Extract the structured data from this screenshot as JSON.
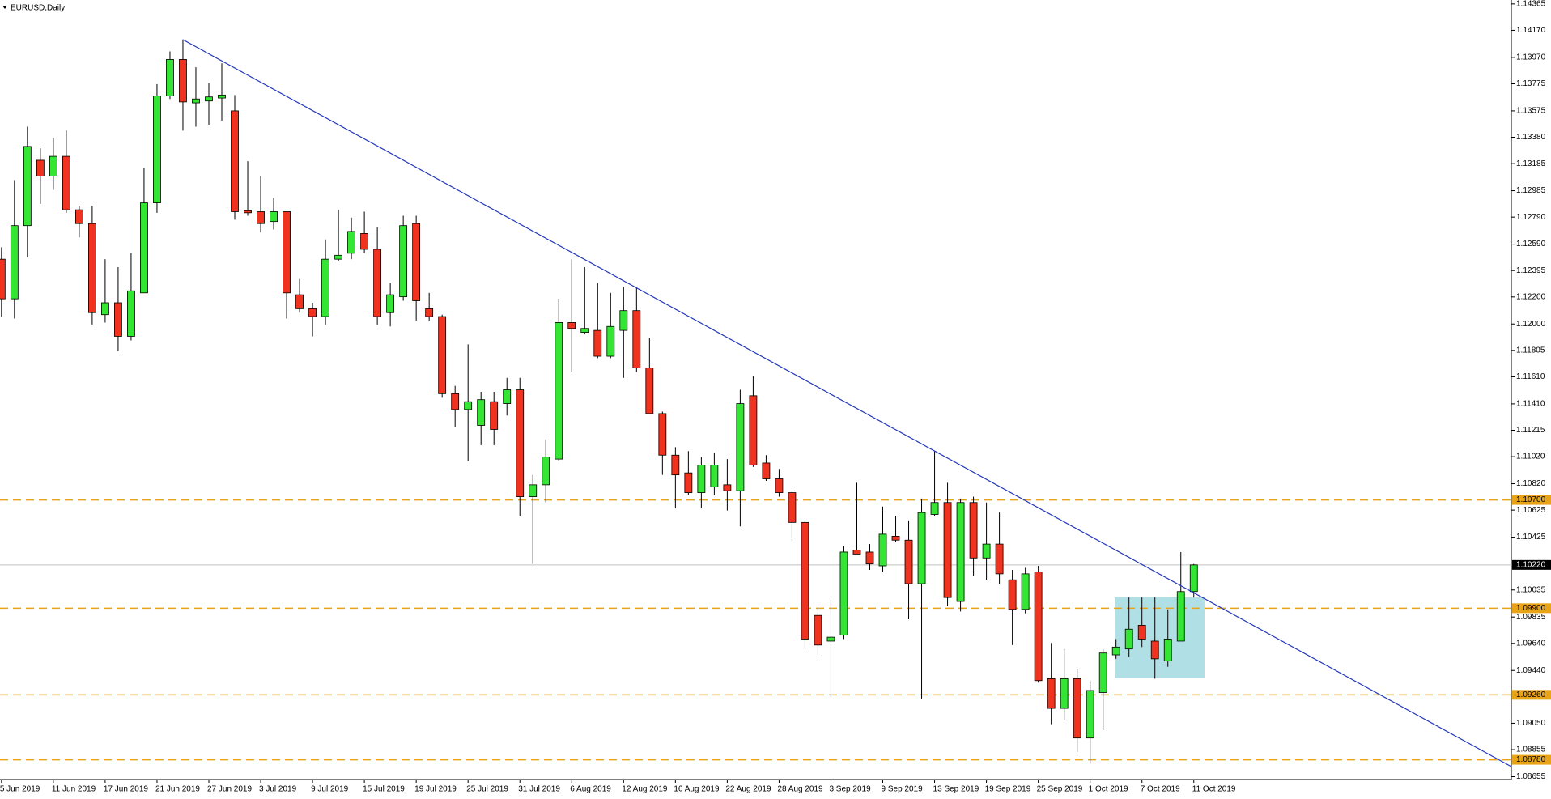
{
  "chart_data": {
    "type": "candlestick",
    "title": "EURUSD,Daily",
    "categories": [
      "5 Jun 2019",
      null,
      null,
      null,
      "11 Jun 2019",
      null,
      null,
      null,
      "17 Jun 2019",
      null,
      null,
      null,
      "21 Jun 2019",
      null,
      null,
      null,
      "27 Jun 2019",
      null,
      null,
      null,
      "3 Jul 2019",
      null,
      null,
      null,
      "9 Jul 2019",
      null,
      null,
      null,
      "15 Jul 2019",
      null,
      null,
      null,
      "19 Jul 2019",
      null,
      null,
      null,
      "25 Jul 2019",
      null,
      null,
      null,
      "31 Jul 2019",
      null,
      null,
      null,
      "6 Aug 2019",
      null,
      null,
      null,
      "12 Aug 2019",
      null,
      null,
      null,
      "16 Aug 2019",
      null,
      null,
      null,
      "22 Aug 2019",
      null,
      null,
      null,
      "28 Aug 2019",
      null,
      null,
      null,
      "3 Sep 2019",
      null,
      null,
      null,
      "9 Sep 2019",
      null,
      null,
      null,
      "13 Sep 2019",
      null,
      null,
      null,
      "19 Sep 2019",
      null,
      null,
      null,
      "25 Sep 2019",
      null,
      null,
      null,
      "1 Oct 2019",
      null,
      null,
      null,
      "7 Oct 2019",
      null,
      null,
      null,
      "11 Oct 2019"
    ],
    "open": [
      1.12479,
      1.12186,
      1.12727,
      1.1321,
      1.13093,
      1.13239,
      1.12844,
      1.12742,
      1.12069,
      1.12157,
      1.11909,
      1.1223,
      1.12895,
      1.13685,
      1.13955,
      1.13634,
      1.13648,
      1.1367,
      1.13575,
      1.12837,
      1.1283,
      1.12757,
      1.1283,
      1.12216,
      1.12113,
      1.12055,
      1.12479,
      1.12523,
      1.12669,
      1.12552,
      1.12084,
      1.12201,
      1.12742,
      1.12113,
      1.12055,
      1.11485,
      1.11368,
      1.11251,
      1.11426,
      1.11412,
      1.11514,
      1.10724,
      1.10812,
      1.11002,
      1.12011,
      1.11938,
      1.11953,
      1.11762,
      1.11953,
      1.12099,
      1.11675,
      1.11338,
      1.11031,
      1.109,
      1.10754,
      1.10797,
      1.10812,
      1.10768,
      1.1147,
      1.10973,
      1.10856,
      1.10754,
      1.10534,
      1.09847,
      1.09657,
      1.09701,
      1.1033,
      1.10315,
      1.10213,
      1.10432,
      1.10403,
      1.10081,
      1.10593,
      1.10681,
      1.0995,
      1.10681,
      1.10271,
      1.10374,
      1.1011,
      1.09891,
      1.10169,
      1.09379,
      1.0916,
      1.09379,
      1.08941,
      1.09277,
      1.09555,
      1.09599,
      1.09774,
      1.09657,
      1.09511,
      1.09657,
      1.10023
    ],
    "high": [
      1.12567,
      1.13064,
      1.13458,
      1.13298,
      1.13371,
      1.13429,
      1.12874,
      1.12874,
      1.12479,
      1.1242,
      1.12523,
      1.13151,
      1.13773,
      1.14014,
      1.14102,
      1.13897,
      1.1378,
      1.13926,
      1.13692,
      1.13203,
      1.13093,
      1.12932,
      1.1283,
      1.12333,
      1.12157,
      1.12625,
      1.12844,
      1.12786,
      1.1283,
      1.12713,
      1.12303,
      1.128,
      1.128,
      1.1223,
      1.12069,
      1.11543,
      1.1185,
      1.11499,
      1.11499,
      1.11602,
      1.11602,
      1.10885,
      1.11148,
      1.12186,
      1.12479,
      1.1242,
      1.12303,
      1.1223,
      1.12274,
      1.12274,
      1.11894,
      1.11353,
      1.1109,
      1.11061,
      1.11017,
      1.11046,
      1.11002,
      1.11514,
      1.11616,
      1.11031,
      1.10929,
      1.10768,
      1.10549,
      1.09906,
      1.09964,
      1.10359,
      1.10827,
      1.10374,
      1.10651,
      1.10578,
      1.10549,
      1.1071,
      1.11061,
      1.10827,
      1.1071,
      1.10724,
      1.10681,
      1.10607,
      1.10183,
      1.10198,
      1.10213,
      1.09643,
      1.09599,
      1.09452,
      1.09365,
      1.09599,
      1.09672,
      1.09979,
      1.09979,
      1.09979,
      1.09891,
      1.10315,
      1.10227
    ],
    "low": [
      1.12055,
      1.1204,
      1.12493,
      1.12888,
      1.12991,
      1.12822,
      1.1264,
      1.11996,
      1.12011,
      1.11799,
      1.11879,
      1.1223,
      1.12822,
      1.13663,
      1.13429,
      1.13458,
      1.13473,
      1.13502,
      1.12771,
      1.128,
      1.12676,
      1.12698,
      1.1204,
      1.12084,
      1.11909,
      1.11996,
      1.12464,
      1.12479,
      1.12523,
      1.11996,
      1.11982,
      1.12172,
      1.12026,
      1.12026,
      1.11455,
      1.11236,
      1.10988,
      1.11105,
      1.11105,
      1.11324,
      1.10578,
      1.10227,
      1.10681,
      1.10988,
      1.11645,
      1.11923,
      1.11748,
      1.11748,
      1.11602,
      1.11645,
      1.11338,
      1.10885,
      1.10637,
      1.10739,
      1.10637,
      1.10739,
      1.10622,
      1.10505,
      1.10944,
      1.10841,
      1.10724,
      1.10388,
      1.09599,
      1.09555,
      1.09233,
      1.09672,
      1.103,
      1.10183,
      1.10169,
      1.10388,
      1.09818,
      1.09233,
      1.10578,
      1.0992,
      1.09876,
      1.1014,
      1.1011,
      1.10081,
      1.09628,
      1.09862,
      1.0935,
      1.09043,
      1.09072,
      1.08838,
      1.08751,
      1.08999,
      1.09526,
      1.0954,
      1.09613,
      1.09379,
      1.09467,
      1.09657,
      1.09979
    ],
    "close": [
      1.12186,
      1.12727,
      1.13312,
      1.13093,
      1.13239,
      1.12844,
      1.12742,
      1.12084,
      1.12157,
      1.11909,
      1.12245,
      1.12895,
      1.13685,
      1.13955,
      1.13641,
      1.13663,
      1.13678,
      1.13692,
      1.1283,
      1.12822,
      1.12742,
      1.1283,
      1.1223,
      1.12113,
      1.12055,
      1.12479,
      1.12508,
      1.12684,
      1.12552,
      1.12055,
      1.12216,
      1.12727,
      1.12172,
      1.12055,
      1.11485,
      1.11368,
      1.11426,
      1.11441,
      1.11221,
      1.11514,
      1.10724,
      1.10812,
      1.11017,
      1.12011,
      1.11967,
      1.11967,
      1.11762,
      1.11982,
      1.12099,
      1.11675,
      1.11338,
      1.11031,
      1.10885,
      1.10754,
      1.10958,
      1.10958,
      1.10768,
      1.11412,
      1.10958,
      1.10856,
      1.10754,
      1.10534,
      1.09672,
      1.09628,
      1.09686,
      1.10315,
      1.103,
      1.10227,
      1.10447,
      1.10403,
      1.10081,
      1.10607,
      1.10681,
      1.09979,
      1.10681,
      1.10271,
      1.10374,
      1.10154,
      1.09891,
      1.10154,
      1.09365,
      1.0916,
      1.09379,
      1.08941,
      1.09292,
      1.09569,
      1.09613,
      1.09745,
      1.09672,
      1.09526,
      1.09672,
      1.10023,
      1.1022
    ],
    "up_color": "#33e633",
    "down_color": "#f0321e",
    "ylim": [
      1.08634,
      1.14394
    ],
    "yticks": [
      1.14365,
      {
        "value": 1.1417,
        "label": "1.14170"
      },
      {
        "value": 1.1397,
        "label": "1.13970"
      },
      1.13775,
      1.13575,
      {
        "value": 1.1338,
        "label": "1.13380"
      },
      1.13185,
      1.12985,
      {
        "value": 1.1279,
        "label": "1.12790"
      },
      {
        "value": 1.1259,
        "label": "1.12590"
      },
      1.12395,
      {
        "value": 1.122,
        "label": "1.12200"
      },
      {
        "value": 1.12,
        "label": "1.12000"
      },
      1.11805,
      {
        "value": 1.1161,
        "label": "1.11610"
      },
      {
        "value": 1.1141,
        "label": "1.11410"
      },
      1.11215,
      {
        "value": 1.1102,
        "label": "1.11020"
      },
      {
        "value": 1.1082,
        "label": "1.10820"
      },
      1.10625,
      1.10425,
      1.10035,
      1.09835,
      {
        "value": 1.0964,
        "label": "1.09640"
      },
      {
        "value": 1.0944,
        "label": "1.09440"
      },
      {
        "value": 1.0905,
        "label": "1.09050"
      },
      1.08855,
      1.08655
    ],
    "levels": [
      {
        "value": 1.107,
        "label": "1.10700"
      },
      {
        "value": 1.099,
        "label": "1.09900"
      },
      {
        "value": 1.0926,
        "label": "1.09260"
      },
      {
        "value": 1.0878,
        "label": "1.08780"
      }
    ],
    "level_color": "#e8a317",
    "current_price": {
      "value": 1.1022,
      "label": "1.10220"
    },
    "grid": false
  }
}
